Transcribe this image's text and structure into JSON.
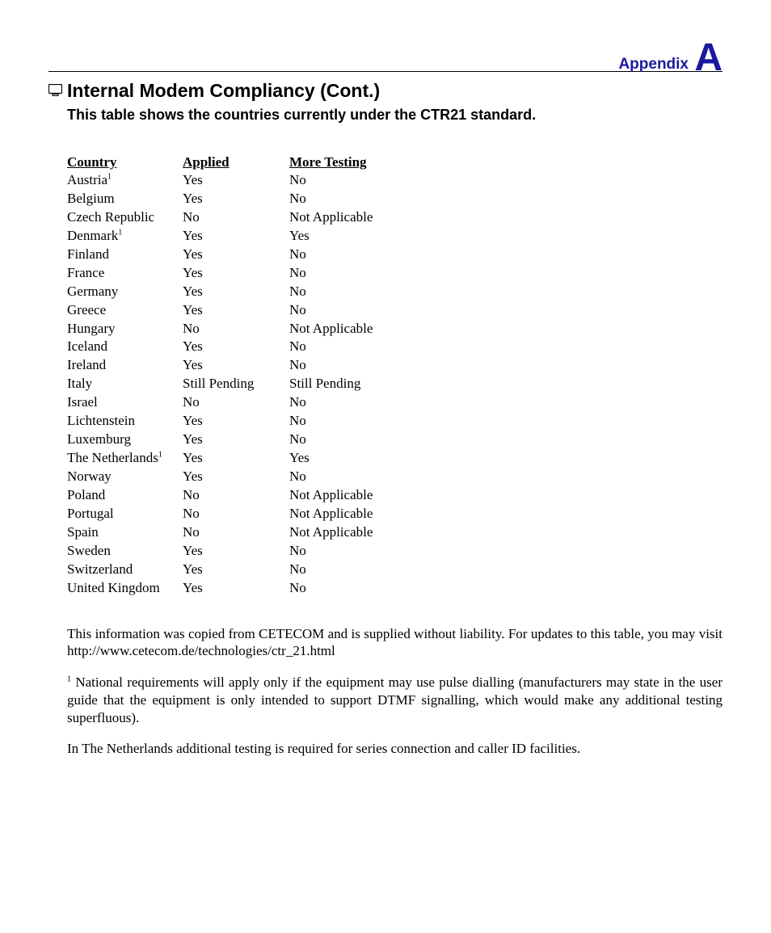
{
  "header": {
    "appendix_label": "Appendix",
    "appendix_letter": "A"
  },
  "title": "Internal Modem Compliancy (Cont.)",
  "subtitle": "This table shows the countries currently under the CTR21 standard.",
  "table": {
    "columns": [
      "Country",
      "Applied",
      "More Testing"
    ],
    "rows": [
      {
        "country": "Austria",
        "sup": "1",
        "applied": "Yes",
        "more": "No"
      },
      {
        "country": "Belgium",
        "sup": "",
        "applied": "Yes",
        "more": "No"
      },
      {
        "country": "Czech Republic",
        "sup": "",
        "applied": "No",
        "more": "Not Applicable"
      },
      {
        "country": "Denmark",
        "sup": "1",
        "applied": "Yes",
        "more": "Yes"
      },
      {
        "country": "Finland",
        "sup": "",
        "applied": "Yes",
        "more": "No"
      },
      {
        "country": "France",
        "sup": "",
        "applied": "Yes",
        "more": "No"
      },
      {
        "country": "Germany",
        "sup": "",
        "applied": "Yes",
        "more": "No"
      },
      {
        "country": "Greece",
        "sup": "",
        "applied": "Yes",
        "more": "No"
      },
      {
        "country": "Hungary",
        "sup": "",
        "applied": "No",
        "more": "Not Applicable"
      },
      {
        "country": "Iceland",
        "sup": "",
        "applied": "Yes",
        "more": "No"
      },
      {
        "country": "Ireland",
        "sup": "",
        "applied": "Yes",
        "more": "No"
      },
      {
        "country": "Italy",
        "sup": "",
        "applied": "Still Pending",
        "more": "Still Pending"
      },
      {
        "country": "Israel",
        "sup": "",
        "applied": "No",
        "more": "No"
      },
      {
        "country": "Lichtenstein",
        "sup": "",
        "applied": "Yes",
        "more": "No"
      },
      {
        "country": "Luxemburg",
        "sup": "",
        "applied": "Yes",
        "more": "No"
      },
      {
        "country": "The Netherlands",
        "sup": "1",
        "applied": "Yes",
        "more": "Yes"
      },
      {
        "country": "Norway",
        "sup": "",
        "applied": "Yes",
        "more": "No"
      },
      {
        "country": "Poland",
        "sup": "",
        "applied": "No",
        "more": "Not Applicable"
      },
      {
        "country": "Portugal",
        "sup": "",
        "applied": "No",
        "more": "Not Applicable"
      },
      {
        "country": "Spain",
        "sup": "",
        "applied": "No",
        "more": "Not Applicable"
      },
      {
        "country": "Sweden",
        "sup": "",
        "applied": "Yes",
        "more": "No"
      },
      {
        "country": "Switzerland",
        "sup": "",
        "applied": "Yes",
        "more": "No"
      },
      {
        "country": "United Kingdom",
        "sup": "",
        "applied": "Yes",
        "more": "No"
      }
    ]
  },
  "para1": "This information was copied from CETECOM and is supplied without liability. For updates to this table, you may visit http://www.cetecom.de/technologies/ctr_21.html",
  "footnote_sup": "1",
  "footnote_text": " National requirements will apply only if the equipment may use pulse dialling (manufacturers may state in the user guide that the equipment is only intended to support DTMF signalling, which would make any additional testing superfluous).",
  "para3": "In The Netherlands additional testing is required for series connection and caller ID facilities."
}
